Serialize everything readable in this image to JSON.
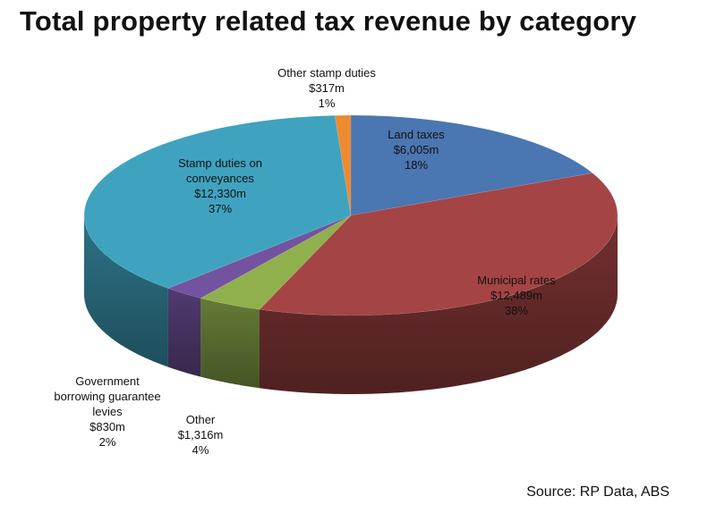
{
  "chart_data": {
    "type": "pie",
    "title": "Total property related tax revenue by category",
    "source": "Source: RP Data, ABS",
    "slices": [
      {
        "lines": [
          "Land taxes"
        ],
        "value": 6005,
        "value_label": "$6,005m",
        "percent_label": "18%",
        "color": "#4a76b2"
      },
      {
        "lines": [
          "Municipal rates"
        ],
        "value": 12489,
        "value_label": "$12,489m",
        "percent_label": "38%",
        "color": "#a54444"
      },
      {
        "lines": [
          "Other"
        ],
        "value": 1316,
        "value_label": "$1,316m",
        "percent_label": "4%",
        "color": "#8fb04d"
      },
      {
        "lines": [
          "Government",
          "borrowing guarantee",
          "levies"
        ],
        "value": 830,
        "value_label": "$830m",
        "percent_label": "2%",
        "color": "#7353a0"
      },
      {
        "lines": [
          "Stamp duties on",
          "conveyances"
        ],
        "value": 12330,
        "value_label": "$12,330m",
        "percent_label": "37%",
        "color": "#3fa3c0"
      },
      {
        "lines": [
          "Other stamp duties"
        ],
        "value": 317,
        "value_label": "$317m",
        "percent_label": "1%",
        "color": "#ee8a30"
      }
    ]
  }
}
